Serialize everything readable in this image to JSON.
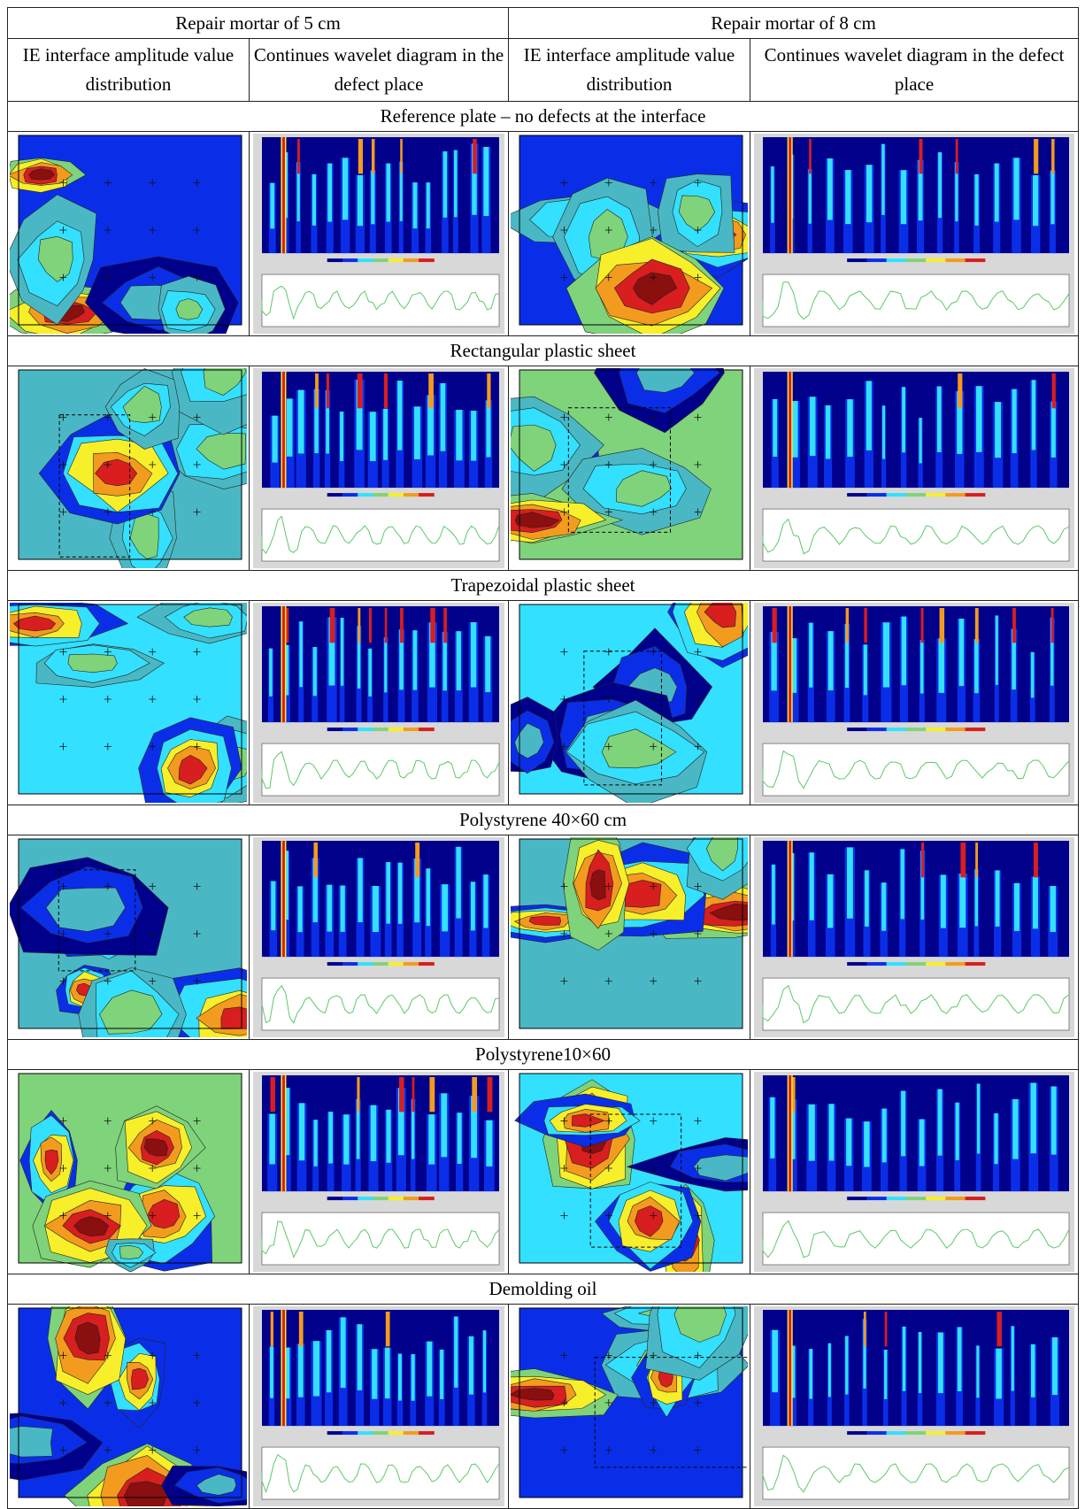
{
  "header": {
    "groups": [
      "Repair mortar of 5 cm",
      "Repair mortar of 8 cm"
    ],
    "columns": [
      "IE interface amplitude value distribution",
      "Continues wavelet diagram in the defect place",
      "IE interface amplitude value distribution",
      "Continues wavelet diagram in the defect place"
    ]
  },
  "sections": [
    {
      "title": "Reference plate – no defects at the interface"
    },
    {
      "title": "Rectangular plastic sheet"
    },
    {
      "title": "Trapezoidal plastic sheet"
    },
    {
      "title": "Polystyrene 40×60 cm"
    },
    {
      "title": "Polystyrene10×60"
    },
    {
      "title": "Demolding oil"
    }
  ],
  "colors": {
    "deep_blue": "#00008b",
    "blue": "#0a2ee8",
    "cyan": "#33e0ff",
    "teal": "#4ab8c4",
    "green": "#7fd37a",
    "yellow": "#f6ef2a",
    "orange": "#f39b1e",
    "red": "#d81e1e",
    "dark_red": "#8a0f0f"
  }
}
